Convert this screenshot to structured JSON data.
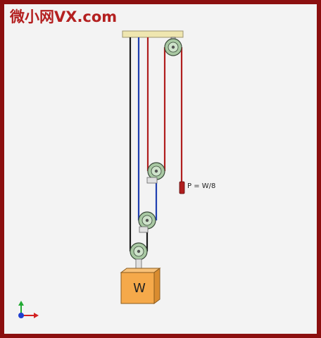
{
  "watermark": {
    "text": "微小网VX.com"
  },
  "labels": {
    "force": "P = W/8",
    "weight": "W"
  },
  "icons": {
    "axes": "xyz-axes-icon"
  },
  "colors": {
    "frame": "#8b0f0f",
    "background": "#f3f3f3",
    "rope_red": "#b01e1e",
    "rope_blue": "#1f3fb0",
    "rope_black": "#1a1a1a",
    "pulley": "#a9c9a3",
    "beam": "#efe6b0",
    "weight_box": "#f5a94a"
  }
}
